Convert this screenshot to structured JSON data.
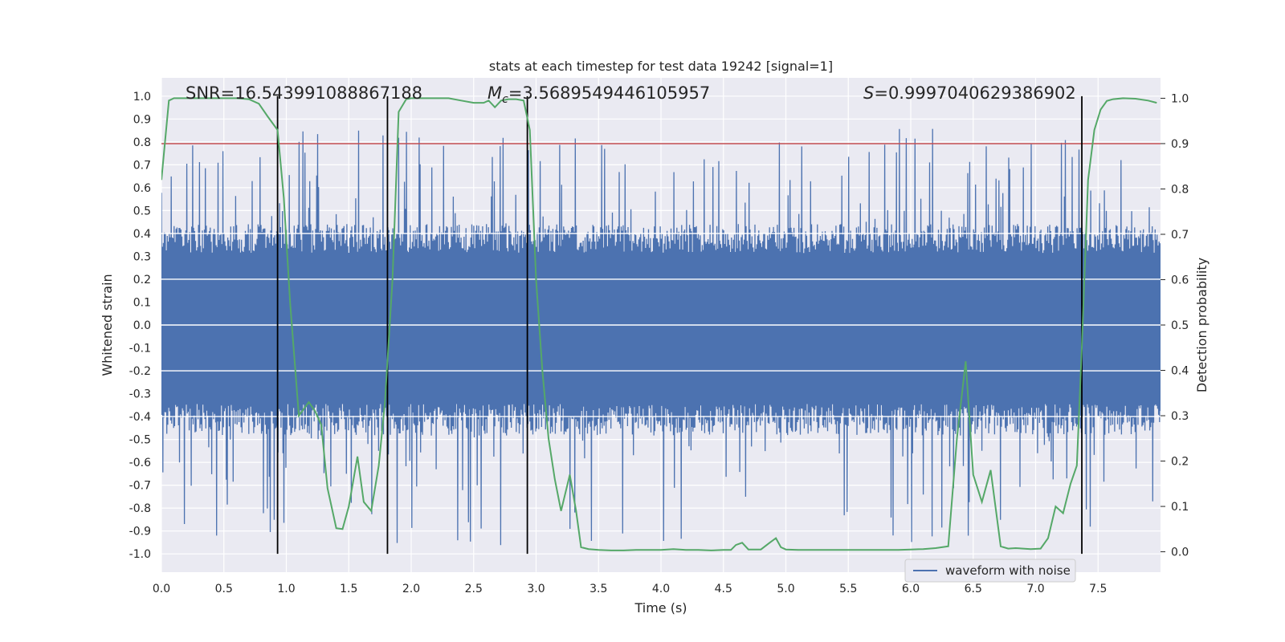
{
  "chart_data": {
    "type": "line",
    "title": "stats at each timestep for test data 19242 [signal=1]",
    "xlabel": "Time (s)",
    "ylabel": "Whitened strain",
    "y2label": "Detection probability",
    "xlim": [
      0.0,
      8.0
    ],
    "ylim": [
      -1.08,
      1.08
    ],
    "y2lim": [
      -0.045,
      1.045
    ],
    "xticks": [
      "0.0",
      "0.5",
      "1.0",
      "1.5",
      "2.0",
      "2.5",
      "3.0",
      "3.5",
      "4.0",
      "4.5",
      "5.0",
      "5.5",
      "6.0",
      "6.5",
      "7.0",
      "7.5"
    ],
    "xtick_values": [
      0.0,
      0.5,
      1.0,
      1.5,
      2.0,
      2.5,
      3.0,
      3.5,
      4.0,
      4.5,
      5.0,
      5.5,
      6.0,
      6.5,
      7.0,
      7.5
    ],
    "yticks": [
      "1.0",
      "0.9",
      "0.8",
      "0.7",
      "0.6",
      "0.5",
      "0.4",
      "0.3",
      "0.2",
      "0.1",
      "0.0",
      "-0.1",
      "-0.2",
      "-0.3",
      "-0.4",
      "-0.5",
      "-0.6",
      "-0.7",
      "-0.8",
      "-0.9",
      "-1.0"
    ],
    "ytick_values": [
      1.0,
      0.9,
      0.8,
      0.7,
      0.6,
      0.5,
      0.4,
      0.3,
      0.2,
      0.1,
      0.0,
      -0.1,
      -0.2,
      -0.3,
      -0.4,
      -0.5,
      -0.6,
      -0.7,
      -0.8,
      -0.9,
      -1.0
    ],
    "y2ticks": [
      "1.0",
      "0.9",
      "0.8",
      "0.7",
      "0.6",
      "0.5",
      "0.4",
      "0.3",
      "0.2",
      "0.1",
      "0.0"
    ],
    "y2tick_values": [
      1.0,
      0.9,
      0.8,
      0.7,
      0.6,
      0.5,
      0.4,
      0.3,
      0.2,
      0.1,
      0.0
    ],
    "annotations": {
      "snr": "SNR=16.543991088867188",
      "mc_symbol": "M",
      "mc_sub": "c",
      "mc_value": "=3.5689549446105957",
      "s_symbol": "S",
      "s_value": "=0.9997040629386902"
    },
    "legend": {
      "label": "waveform with noise",
      "position": "lower-right"
    },
    "threshold": {
      "value": 0.9,
      "axis": "y2",
      "color": "#c44e52"
    },
    "vlines": [
      0.93,
      1.81,
      2.93,
      7.37
    ],
    "vline_range": [
      -1.0,
      1.0
    ],
    "series": [
      {
        "name": "waveform with noise",
        "axis": "y",
        "color": "#4c72b0",
        "kind": "noise",
        "samples": 2048,
        "envelope_pos": 0.42,
        "envelope_neg": -0.46,
        "spike_max": 0.86,
        "spike_min": -0.97
      },
      {
        "name": "detection probability",
        "axis": "y2",
        "color": "#55a868",
        "x": [
          0.0,
          0.06,
          0.1,
          0.2,
          0.3,
          0.4,
          0.5,
          0.6,
          0.7,
          0.78,
          0.85,
          0.93,
          0.98,
          1.03,
          1.1,
          1.18,
          1.23,
          1.28,
          1.33,
          1.4,
          1.45,
          1.5,
          1.57,
          1.62,
          1.68,
          1.74,
          1.79,
          1.85,
          1.9,
          1.96,
          2.0,
          2.1,
          2.2,
          2.3,
          2.4,
          2.5,
          2.58,
          2.62,
          2.67,
          2.72,
          2.78,
          2.84,
          2.9,
          2.95,
          3.0,
          3.05,
          3.1,
          3.15,
          3.2,
          3.27,
          3.32,
          3.36,
          3.42,
          3.5,
          3.6,
          3.7,
          3.8,
          3.9,
          4.0,
          4.1,
          4.2,
          4.3,
          4.4,
          4.5,
          4.56,
          4.6,
          4.65,
          4.7,
          4.8,
          4.87,
          4.92,
          4.96,
          5.0,
          5.1,
          5.3,
          5.5,
          5.7,
          5.9,
          6.0,
          6.1,
          6.2,
          6.25,
          6.3,
          6.37,
          6.44,
          6.5,
          6.57,
          6.64,
          6.72,
          6.78,
          6.84,
          6.9,
          6.96,
          7.04,
          7.1,
          7.16,
          7.22,
          7.28,
          7.33,
          7.37,
          7.42,
          7.47,
          7.52,
          7.57,
          7.62,
          7.7,
          7.8,
          7.9,
          7.97
        ],
        "y": [
          0.82,
          0.995,
          1.0,
          1.0,
          1.0,
          1.0,
          1.0,
          1.0,
          0.998,
          0.988,
          0.96,
          0.93,
          0.78,
          0.55,
          0.3,
          0.33,
          0.31,
          0.28,
          0.14,
          0.052,
          0.05,
          0.1,
          0.21,
          0.11,
          0.09,
          0.19,
          0.33,
          0.6,
          0.97,
          0.998,
          1.0,
          1.0,
          1.0,
          1.0,
          0.995,
          0.99,
          0.99,
          0.995,
          0.98,
          0.995,
          0.998,
          0.998,
          0.995,
          0.93,
          0.6,
          0.4,
          0.25,
          0.16,
          0.09,
          0.17,
          0.09,
          0.01,
          0.006,
          0.004,
          0.003,
          0.003,
          0.004,
          0.004,
          0.004,
          0.006,
          0.004,
          0.004,
          0.003,
          0.004,
          0.004,
          0.015,
          0.02,
          0.005,
          0.005,
          0.02,
          0.03,
          0.01,
          0.005,
          0.004,
          0.004,
          0.004,
          0.004,
          0.004,
          0.005,
          0.006,
          0.008,
          0.01,
          0.012,
          0.25,
          0.42,
          0.17,
          0.11,
          0.18,
          0.012,
          0.007,
          0.008,
          0.007,
          0.006,
          0.007,
          0.03,
          0.1,
          0.085,
          0.15,
          0.19,
          0.45,
          0.82,
          0.93,
          0.975,
          0.994,
          0.998,
          1.0,
          0.999,
          0.995,
          0.99
        ]
      }
    ]
  }
}
